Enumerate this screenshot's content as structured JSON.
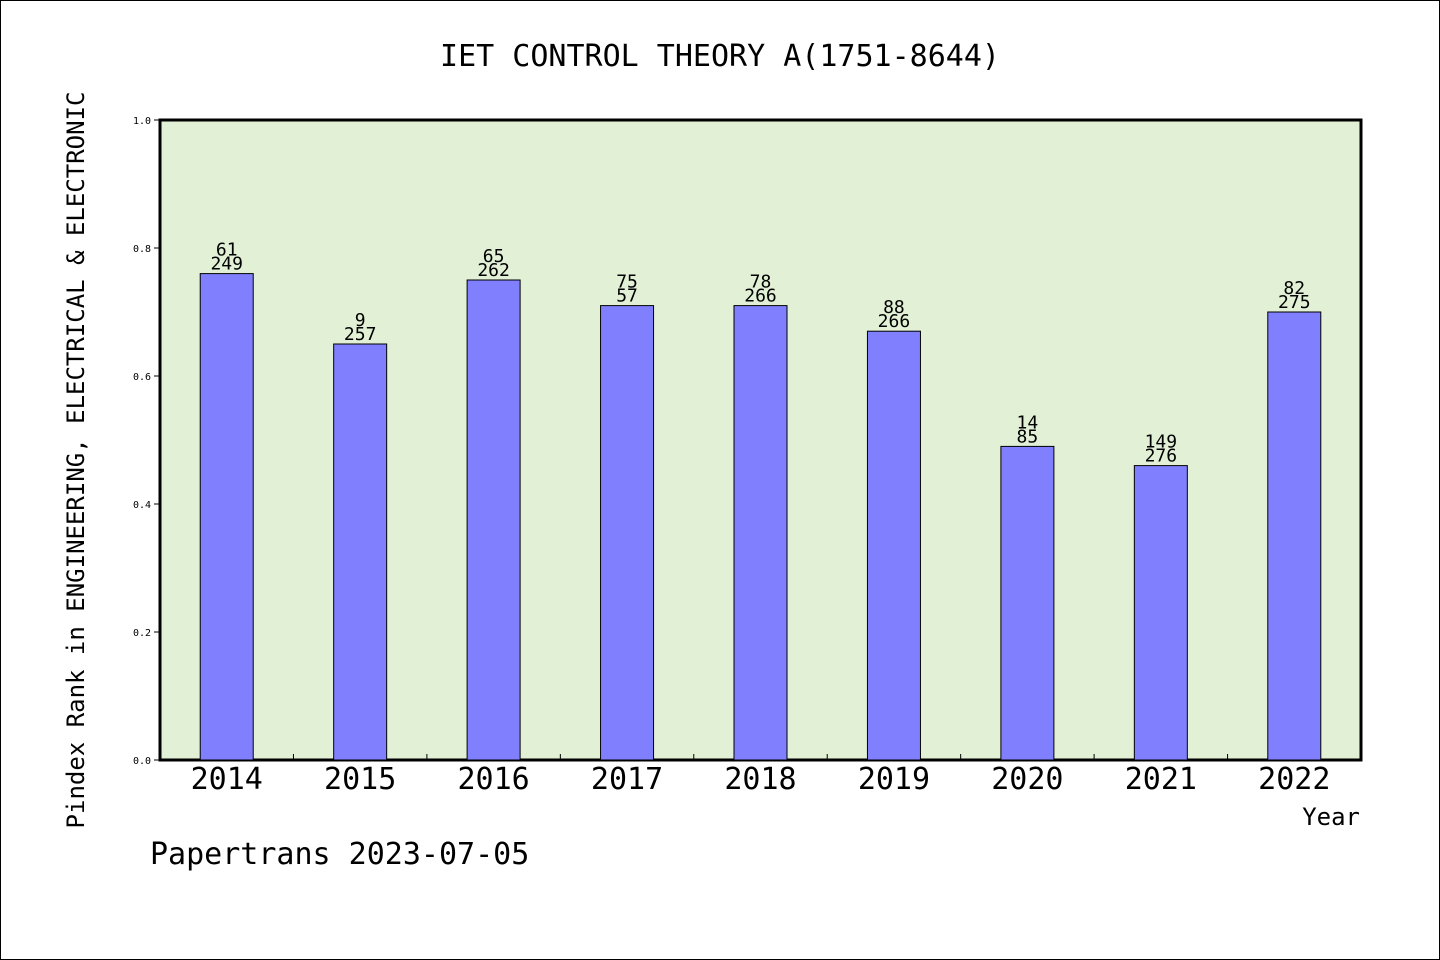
{
  "chart_data": {
    "type": "bar",
    "title": "IET CONTROL THEORY A(1751-8644)",
    "xlabel": "Year",
    "ylabel": "Pindex Rank in ENGINEERING, ELECTRICAL & ELECTRONIC",
    "footer": "Papertrans 2023-07-05",
    "ylim": [
      0,
      1.0
    ],
    "yticks": [
      "0.0",
      "0.2",
      "0.4",
      "0.6",
      "0.8",
      "1.0"
    ],
    "ytick_values": [
      0,
      0.2,
      0.4,
      0.6,
      0.8,
      1.0
    ],
    "categories": [
      "2014",
      "2015",
      "2016",
      "2017",
      "2018",
      "2019",
      "2020",
      "2021",
      "2022"
    ],
    "values": [
      0.76,
      0.65,
      0.75,
      0.71,
      0.71,
      0.67,
      0.49,
      0.46,
      0.7
    ],
    "labels_top": [
      "61",
      "9",
      "65",
      "75",
      "78",
      "88",
      "14",
      "149",
      "82"
    ],
    "labels_bottom": [
      "249",
      "257",
      "262",
      "57",
      "266",
      "266",
      "85",
      "276",
      "275"
    ],
    "grid": false,
    "legend": "none",
    "colors": {
      "bar_fill": "#8080ff",
      "plot_background": "#e2f0d6",
      "axis": "#000000"
    }
  }
}
